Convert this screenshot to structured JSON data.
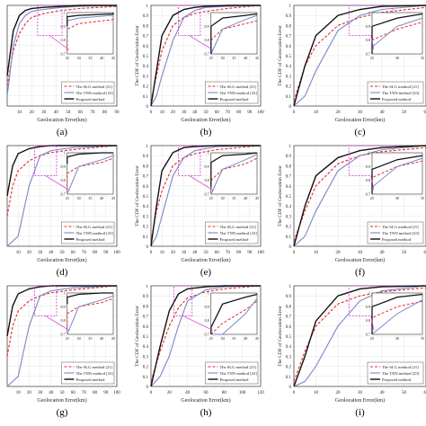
{
  "legend_entries": [
    "The SLG method [21]",
    "The TNN method [23]",
    "Proposed method"
  ],
  "xlabel": "Geolocation Error(km)",
  "ylabel": "The CDF of Geolocation Error",
  "colors": {
    "slg": "#e8262b",
    "tnn": "#7a86c8",
    "proposed": "#111111",
    "zoom_box": "#d633d6"
  },
  "chart_data": [
    {
      "type": "line",
      "panel_label": "(a)",
      "x_ticks": [
        "10",
        "20",
        "30",
        "40",
        "50",
        "60",
        "70",
        "80",
        "90"
      ],
      "xlim": [
        0,
        90
      ],
      "ylim": [
        0,
        1
      ],
      "series": [
        {
          "name": "The SLG method [21]",
          "x": [
            0,
            5,
            10,
            15,
            20,
            30,
            45,
            60,
            90
          ],
          "y": [
            0.2,
            0.55,
            0.72,
            0.82,
            0.88,
            0.92,
            0.95,
            0.97,
            0.99
          ]
        },
        {
          "name": "The TNN method [23]",
          "x": [
            0,
            5,
            10,
            15,
            20,
            30,
            45,
            60,
            90
          ],
          "y": [
            0.1,
            0.6,
            0.82,
            0.9,
            0.94,
            0.96,
            0.98,
            0.99,
            1.0
          ]
        },
        {
          "name": "Proposed method",
          "x": [
            0,
            5,
            10,
            15,
            20,
            30,
            45,
            60,
            90
          ],
          "y": [
            0.3,
            0.75,
            0.9,
            0.95,
            0.97,
            0.98,
            0.99,
            1.0,
            1.0
          ]
        }
      ],
      "inset": {
        "x_ticks": [
          "25",
          "30",
          "35",
          "40",
          "45"
        ],
        "y_ticks": [
          "0.7",
          "0.8",
          "0.9",
          "1"
        ]
      }
    },
    {
      "type": "line",
      "panel_label": "(b)",
      "x_ticks": [
        "0",
        "10",
        "20",
        "30",
        "40",
        "50",
        "60",
        "70",
        "80",
        "90",
        "100"
      ],
      "y_ticks": [
        "0",
        "0.1",
        "0.2",
        "0.3",
        "0.4",
        "0.5",
        "0.6",
        "0.7",
        "0.8",
        "0.9",
        "1"
      ],
      "xlim": [
        0,
        100
      ],
      "ylim": [
        0,
        1
      ],
      "series": [
        {
          "name": "The SLG method [21]",
          "x": [
            0,
            5,
            10,
            20,
            30,
            40,
            50,
            70,
            100
          ],
          "y": [
            0.05,
            0.3,
            0.55,
            0.8,
            0.88,
            0.92,
            0.94,
            0.97,
            1.0
          ]
        },
        {
          "name": "The TNN method [23]",
          "x": [
            0,
            5,
            10,
            20,
            30,
            40,
            50,
            70,
            100
          ],
          "y": [
            0,
            0.1,
            0.3,
            0.65,
            0.88,
            0.95,
            0.98,
            0.99,
            1.0
          ]
        },
        {
          "name": "Proposed method",
          "x": [
            0,
            5,
            10,
            20,
            30,
            40,
            50,
            70,
            100
          ],
          "y": [
            0,
            0.35,
            0.7,
            0.9,
            0.96,
            0.98,
            0.99,
            1.0,
            1.0
          ]
        }
      ],
      "inset": {
        "x_ticks": [
          "25",
          "30",
          "35",
          "40",
          "45"
        ],
        "y_ticks": [
          "0.7",
          "0.8",
          "0.9",
          "1"
        ]
      }
    },
    {
      "type": "line",
      "panel_label": "(c)",
      "x_ticks": [
        "0",
        "10",
        "20",
        "30",
        "40",
        "50",
        "60"
      ],
      "y_ticks": [
        "0",
        "0.1",
        "0.2",
        "0.3",
        "0.4",
        "0.5",
        "0.6",
        "0.7",
        "0.8",
        "0.9",
        "1"
      ],
      "xlim": [
        0,
        60
      ],
      "ylim": [
        0,
        1
      ],
      "series": [
        {
          "name": "The SLG method [21]",
          "x": [
            0,
            5,
            10,
            20,
            30,
            40,
            60
          ],
          "y": [
            0.05,
            0.4,
            0.6,
            0.8,
            0.88,
            0.93,
            0.98
          ]
        },
        {
          "name": "The TNN method [23]",
          "x": [
            0,
            5,
            10,
            20,
            30,
            40,
            60
          ],
          "y": [
            0,
            0.1,
            0.35,
            0.75,
            0.9,
            0.96,
            1.0
          ]
        },
        {
          "name": "Proposed method",
          "x": [
            0,
            5,
            10,
            20,
            30,
            40,
            60
          ],
          "y": [
            0,
            0.4,
            0.7,
            0.9,
            0.96,
            0.99,
            1.0
          ]
        }
      ],
      "inset": {
        "x_ticks": [
          "25",
          "30",
          "35"
        ],
        "y_ticks": [
          "0.7",
          "0.8",
          "0.9",
          "1"
        ]
      }
    },
    {
      "type": "line",
      "panel_label": "(d)",
      "x_ticks": [
        "10",
        "20",
        "30",
        "40",
        "50",
        "60",
        "70",
        "80",
        "90",
        "100"
      ],
      "xlim": [
        0,
        100
      ],
      "ylim": [
        0,
        1
      ],
      "series": [
        {
          "name": "The SLG method [21]",
          "x": [
            0,
            5,
            10,
            20,
            30,
            40,
            60,
            100
          ],
          "y": [
            0.3,
            0.6,
            0.75,
            0.85,
            0.9,
            0.93,
            0.96,
            1.0
          ]
        },
        {
          "name": "The TNN method [23]",
          "x": [
            0,
            10,
            20,
            30,
            40,
            60,
            100
          ],
          "y": [
            0,
            0.1,
            0.6,
            0.9,
            0.95,
            0.98,
            1.0
          ]
        },
        {
          "name": "Proposed method",
          "x": [
            0,
            5,
            10,
            20,
            30,
            40,
            60,
            100
          ],
          "y": [
            0.5,
            0.8,
            0.92,
            0.97,
            0.99,
            1.0,
            1.0,
            1.0
          ]
        }
      ],
      "inset": {
        "x_ticks": [
          "25",
          "30",
          "35",
          "40",
          "45"
        ],
        "y_ticks": [
          "0.7",
          "0.8",
          "0.9",
          "1"
        ]
      }
    },
    {
      "type": "line",
      "panel_label": "(e)",
      "x_ticks": [
        "0",
        "10",
        "20",
        "30",
        "40",
        "50",
        "60",
        "70",
        "80",
        "90",
        "100"
      ],
      "y_ticks": [
        "0",
        "0.1",
        "0.2",
        "0.3",
        "0.4",
        "0.5",
        "0.6",
        "0.7",
        "0.8",
        "0.9",
        "1"
      ],
      "xlim": [
        0,
        100
      ],
      "ylim": [
        0,
        1
      ],
      "series": [
        {
          "name": "The SLG method [21]",
          "x": [
            0,
            5,
            10,
            20,
            30,
            40,
            60,
            100
          ],
          "y": [
            0.05,
            0.35,
            0.55,
            0.8,
            0.88,
            0.92,
            0.96,
            1.0
          ]
        },
        {
          "name": "The TNN method [23]",
          "x": [
            0,
            5,
            10,
            20,
            30,
            40,
            60,
            100
          ],
          "y": [
            0,
            0.1,
            0.3,
            0.7,
            0.88,
            0.95,
            0.99,
            1.0
          ]
        },
        {
          "name": "Proposed method",
          "x": [
            0,
            5,
            10,
            20,
            30,
            40,
            60,
            100
          ],
          "y": [
            0,
            0.4,
            0.75,
            0.93,
            0.98,
            0.99,
            1.0,
            1.0
          ]
        }
      ],
      "inset": {
        "x_ticks": [
          "25",
          "30",
          "35",
          "40",
          "45"
        ],
        "y_ticks": [
          "0.7",
          "0.8",
          "0.9",
          "1"
        ]
      }
    },
    {
      "type": "line",
      "panel_label": "(f)",
      "x_ticks": [
        "0",
        "10",
        "20",
        "30",
        "40",
        "50",
        "60"
      ],
      "y_ticks": [
        "0",
        "0.1",
        "0.2",
        "0.3",
        "0.4",
        "0.5",
        "0.6",
        "0.7",
        "0.8",
        "0.9",
        "1"
      ],
      "xlim": [
        0,
        60
      ],
      "ylim": [
        0,
        1
      ],
      "series": [
        {
          "name": "The SLG method [21]",
          "x": [
            0,
            5,
            10,
            20,
            30,
            40,
            60
          ],
          "y": [
            0.05,
            0.35,
            0.6,
            0.82,
            0.9,
            0.94,
            0.98
          ]
        },
        {
          "name": "The TNN method [23]",
          "x": [
            0,
            5,
            10,
            20,
            30,
            40,
            60
          ],
          "y": [
            0,
            0.1,
            0.35,
            0.75,
            0.9,
            0.96,
            1.0
          ]
        },
        {
          "name": "Proposed method",
          "x": [
            0,
            5,
            10,
            20,
            30,
            40,
            60
          ],
          "y": [
            0,
            0.4,
            0.7,
            0.88,
            0.95,
            0.98,
            1.0
          ]
        }
      ],
      "inset": {
        "x_ticks": [
          "25",
          "30",
          "35"
        ],
        "y_ticks": [
          "0.7",
          "0.8",
          "0.9",
          "1"
        ]
      }
    },
    {
      "type": "line",
      "panel_label": "(g)",
      "x_ticks": [
        "10",
        "20",
        "30",
        "40",
        "50",
        "60",
        "70",
        "80",
        "90",
        "100"
      ],
      "xlim": [
        0,
        100
      ],
      "ylim": [
        0,
        1
      ],
      "series": [
        {
          "name": "The SLG method [21]",
          "x": [
            0,
            5,
            10,
            20,
            30,
            40,
            60,
            100
          ],
          "y": [
            0.3,
            0.6,
            0.75,
            0.85,
            0.9,
            0.93,
            0.96,
            1.0
          ]
        },
        {
          "name": "The TNN method [23]",
          "x": [
            0,
            10,
            20,
            30,
            40,
            60,
            100
          ],
          "y": [
            0,
            0.1,
            0.6,
            0.9,
            0.95,
            0.98,
            1.0
          ]
        },
        {
          "name": "Proposed method",
          "x": [
            0,
            5,
            10,
            20,
            30,
            40,
            60,
            100
          ],
          "y": [
            0.5,
            0.8,
            0.92,
            0.97,
            0.99,
            1.0,
            1.0,
            1.0
          ]
        }
      ],
      "inset": {
        "x_ticks": [
          "25",
          "30",
          "35",
          "40",
          "45"
        ],
        "y_ticks": [
          "0.7",
          "0.8",
          "0.9",
          "1"
        ]
      }
    },
    {
      "type": "line",
      "panel_label": "(h)",
      "x_ticks": [
        "0",
        "20",
        "40",
        "60",
        "80",
        "100",
        "120"
      ],
      "y_ticks": [
        "0",
        "0.1",
        "0.2",
        "0.3",
        "0.4",
        "0.5",
        "0.6",
        "0.7",
        "0.8",
        "0.9",
        "1"
      ],
      "xlim": [
        0,
        120
      ],
      "ylim": [
        0,
        1
      ],
      "series": [
        {
          "name": "The SLG method [21]",
          "x": [
            0,
            10,
            20,
            30,
            40,
            60,
            80,
            120
          ],
          "y": [
            0.05,
            0.35,
            0.6,
            0.78,
            0.88,
            0.94,
            0.97,
            1.0
          ]
        },
        {
          "name": "The TNN method [23]",
          "x": [
            0,
            10,
            20,
            30,
            40,
            60,
            80,
            120
          ],
          "y": [
            0,
            0.1,
            0.3,
            0.6,
            0.85,
            0.96,
            0.99,
            1.0
          ]
        },
        {
          "name": "Proposed method",
          "x": [
            0,
            10,
            20,
            30,
            40,
            60,
            80,
            120
          ],
          "y": [
            0,
            0.4,
            0.75,
            0.92,
            0.97,
            0.99,
            1.0,
            1.0
          ]
        }
      ],
      "inset": {
        "x_ticks": [
          "25",
          "30",
          "35",
          "40",
          "45"
        ],
        "y_ticks": [
          "0.7",
          "0.8",
          "0.9",
          "1"
        ]
      }
    },
    {
      "type": "line",
      "panel_label": "(i)",
      "x_ticks": [
        "0",
        "10",
        "20",
        "30",
        "40",
        "50",
        "60"
      ],
      "y_ticks": [
        "0",
        "0.1",
        "0.2",
        "0.3",
        "0.4",
        "0.5",
        "0.6",
        "0.7",
        "0.8",
        "0.9",
        "1"
      ],
      "xlim": [
        0,
        60
      ],
      "ylim": [
        0,
        1
      ],
      "series": [
        {
          "name": "The SLG method [21]",
          "x": [
            0,
            5,
            10,
            20,
            30,
            40,
            60
          ],
          "y": [
            0.05,
            0.35,
            0.6,
            0.82,
            0.9,
            0.94,
            0.98
          ]
        },
        {
          "name": "The TNN method [23]",
          "x": [
            0,
            5,
            10,
            20,
            30,
            40,
            60
          ],
          "y": [
            0,
            0.05,
            0.2,
            0.6,
            0.85,
            0.95,
            1.0
          ]
        },
        {
          "name": "Proposed method",
          "x": [
            0,
            5,
            10,
            20,
            30,
            40,
            60
          ],
          "y": [
            0,
            0.3,
            0.65,
            0.9,
            0.97,
            0.99,
            1.0
          ]
        }
      ],
      "inset": {
        "x_ticks": [
          "25",
          "30",
          "35"
        ],
        "y_ticks": [
          "0.7",
          "0.8",
          "0.9",
          "1"
        ]
      }
    }
  ]
}
